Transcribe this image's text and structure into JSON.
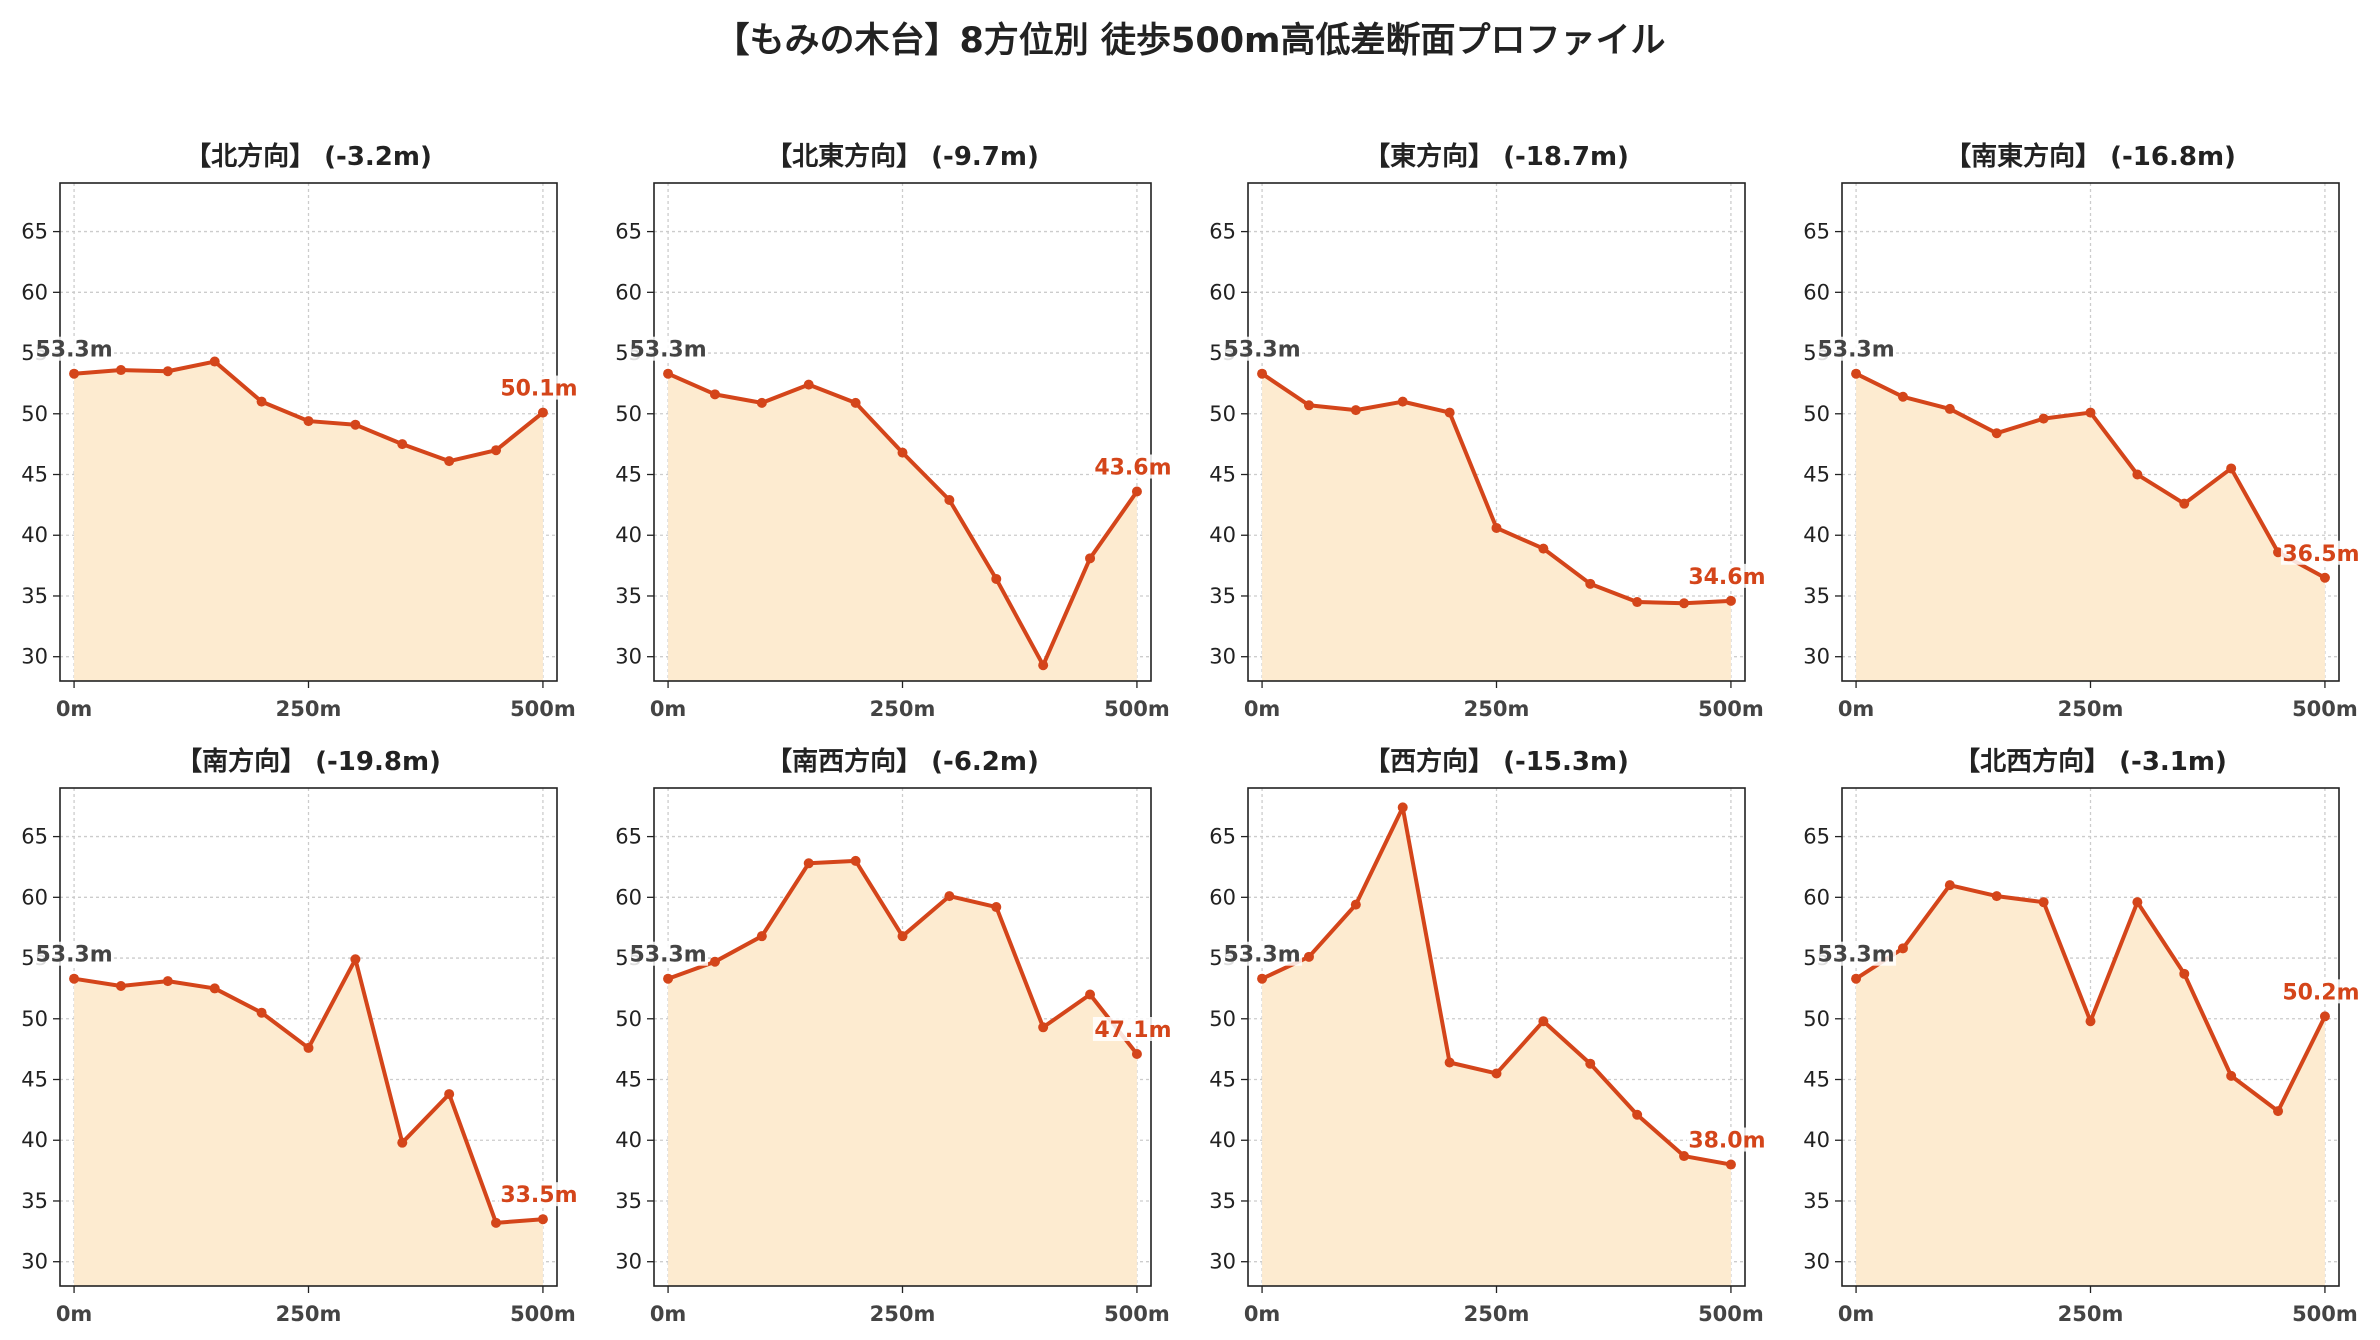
{
  "title": "【もみの木台】8方位別 徒歩500m高低差断面プロファイル",
  "colors": {
    "line": "#d4451a",
    "fill": "#fdebd0",
    "start_label": "#444444",
    "end_label": "#d4451a",
    "grid": "#cccccc",
    "axis": "#222222"
  },
  "chart_data": [
    {
      "type": "area",
      "title": "【北方向】 (-3.2m)",
      "x": [
        0,
        50,
        100,
        150,
        200,
        250,
        300,
        350,
        400,
        450,
        500
      ],
      "y": [
        53.3,
        53.6,
        53.5,
        54.3,
        51.0,
        49.4,
        49.1,
        47.5,
        46.1,
        47.0,
        50.1
      ],
      "xticks": [
        "0m",
        "250m",
        "500m"
      ],
      "xlim": [
        -15,
        515
      ],
      "ylim": [
        28,
        69
      ],
      "yticks": [
        30,
        35,
        40,
        45,
        50,
        55,
        60,
        65
      ],
      "start_label": "53.3m",
      "end_label": "50.1m",
      "grid": true
    },
    {
      "type": "area",
      "title": "【北東方向】 (-9.7m)",
      "x": [
        0,
        50,
        100,
        150,
        200,
        250,
        300,
        350,
        400,
        450,
        500
      ],
      "y": [
        53.3,
        51.6,
        50.9,
        52.4,
        50.9,
        46.8,
        42.9,
        36.4,
        29.3,
        38.1,
        43.6
      ],
      "xticks": [
        "0m",
        "250m",
        "500m"
      ],
      "xlim": [
        -15,
        515
      ],
      "ylim": [
        28,
        69
      ],
      "yticks": [
        30,
        35,
        40,
        45,
        50,
        55,
        60,
        65
      ],
      "start_label": "53.3m",
      "end_label": "43.6m",
      "grid": true
    },
    {
      "type": "area",
      "title": "【東方向】 (-18.7m)",
      "x": [
        0,
        50,
        100,
        150,
        200,
        250,
        300,
        350,
        400,
        450,
        500
      ],
      "y": [
        53.3,
        50.7,
        50.3,
        51.0,
        50.1,
        40.6,
        38.9,
        36.0,
        34.5,
        34.4,
        34.6
      ],
      "xticks": [
        "0m",
        "250m",
        "500m"
      ],
      "xlim": [
        -15,
        515
      ],
      "ylim": [
        28,
        69
      ],
      "yticks": [
        30,
        35,
        40,
        45,
        50,
        55,
        60,
        65
      ],
      "start_label": "53.3m",
      "end_label": "34.6m",
      "grid": true
    },
    {
      "type": "area",
      "title": "【南東方向】 (-16.8m)",
      "x": [
        0,
        50,
        100,
        150,
        200,
        250,
        300,
        350,
        400,
        450,
        500
      ],
      "y": [
        53.3,
        51.4,
        50.4,
        48.4,
        49.6,
        50.1,
        45.0,
        42.6,
        45.5,
        38.6,
        36.5
      ],
      "xticks": [
        "0m",
        "250m",
        "500m"
      ],
      "xlim": [
        -15,
        515
      ],
      "ylim": [
        28,
        69
      ],
      "yticks": [
        30,
        35,
        40,
        45,
        50,
        55,
        60,
        65
      ],
      "start_label": "53.3m",
      "end_label": "36.5m",
      "grid": true
    },
    {
      "type": "area",
      "title": "【南方向】 (-19.8m)",
      "x": [
        0,
        50,
        100,
        150,
        200,
        250,
        300,
        350,
        400,
        450,
        500
      ],
      "y": [
        53.3,
        52.7,
        53.1,
        52.5,
        50.5,
        47.6,
        54.9,
        39.8,
        43.8,
        33.2,
        33.5
      ],
      "xticks": [
        "0m",
        "250m",
        "500m"
      ],
      "xlim": [
        -15,
        515
      ],
      "ylim": [
        28,
        69
      ],
      "yticks": [
        30,
        35,
        40,
        45,
        50,
        55,
        60,
        65
      ],
      "start_label": "53.3m",
      "end_label": "33.5m",
      "grid": true
    },
    {
      "type": "area",
      "title": "【南西方向】 (-6.2m)",
      "x": [
        0,
        50,
        100,
        150,
        200,
        250,
        300,
        350,
        400,
        450,
        500
      ],
      "y": [
        53.3,
        54.7,
        56.8,
        62.8,
        63.0,
        56.8,
        60.1,
        59.2,
        49.3,
        52.0,
        47.1
      ],
      "xticks": [
        "0m",
        "250m",
        "500m"
      ],
      "xlim": [
        -15,
        515
      ],
      "ylim": [
        28,
        69
      ],
      "yticks": [
        30,
        35,
        40,
        45,
        50,
        55,
        60,
        65
      ],
      "start_label": "53.3m",
      "end_label": "47.1m",
      "grid": true
    },
    {
      "type": "area",
      "title": "【西方向】 (-15.3m)",
      "x": [
        0,
        50,
        100,
        150,
        200,
        250,
        300,
        350,
        400,
        450,
        500
      ],
      "y": [
        53.3,
        55.1,
        59.4,
        67.4,
        46.4,
        45.5,
        49.8,
        46.3,
        42.1,
        38.7,
        38.0
      ],
      "xticks": [
        "0m",
        "250m",
        "500m"
      ],
      "xlim": [
        -15,
        515
      ],
      "ylim": [
        28,
        69
      ],
      "yticks": [
        30,
        35,
        40,
        45,
        50,
        55,
        60,
        65
      ],
      "start_label": "53.3m",
      "end_label": "38.0m",
      "grid": true
    },
    {
      "type": "area",
      "title": "【北西方向】 (-3.1m)",
      "x": [
        0,
        50,
        100,
        150,
        200,
        250,
        300,
        350,
        400,
        450,
        500
      ],
      "y": [
        53.3,
        55.8,
        61.0,
        60.1,
        59.6,
        49.8,
        59.6,
        53.7,
        45.3,
        42.4,
        50.2
      ],
      "xticks": [
        "0m",
        "250m",
        "500m"
      ],
      "xlim": [
        -15,
        515
      ],
      "ylim": [
        28,
        69
      ],
      "yticks": [
        30,
        35,
        40,
        45,
        50,
        55,
        60,
        65
      ],
      "start_label": "53.3m",
      "end_label": "50.2m",
      "grid": true
    }
  ]
}
